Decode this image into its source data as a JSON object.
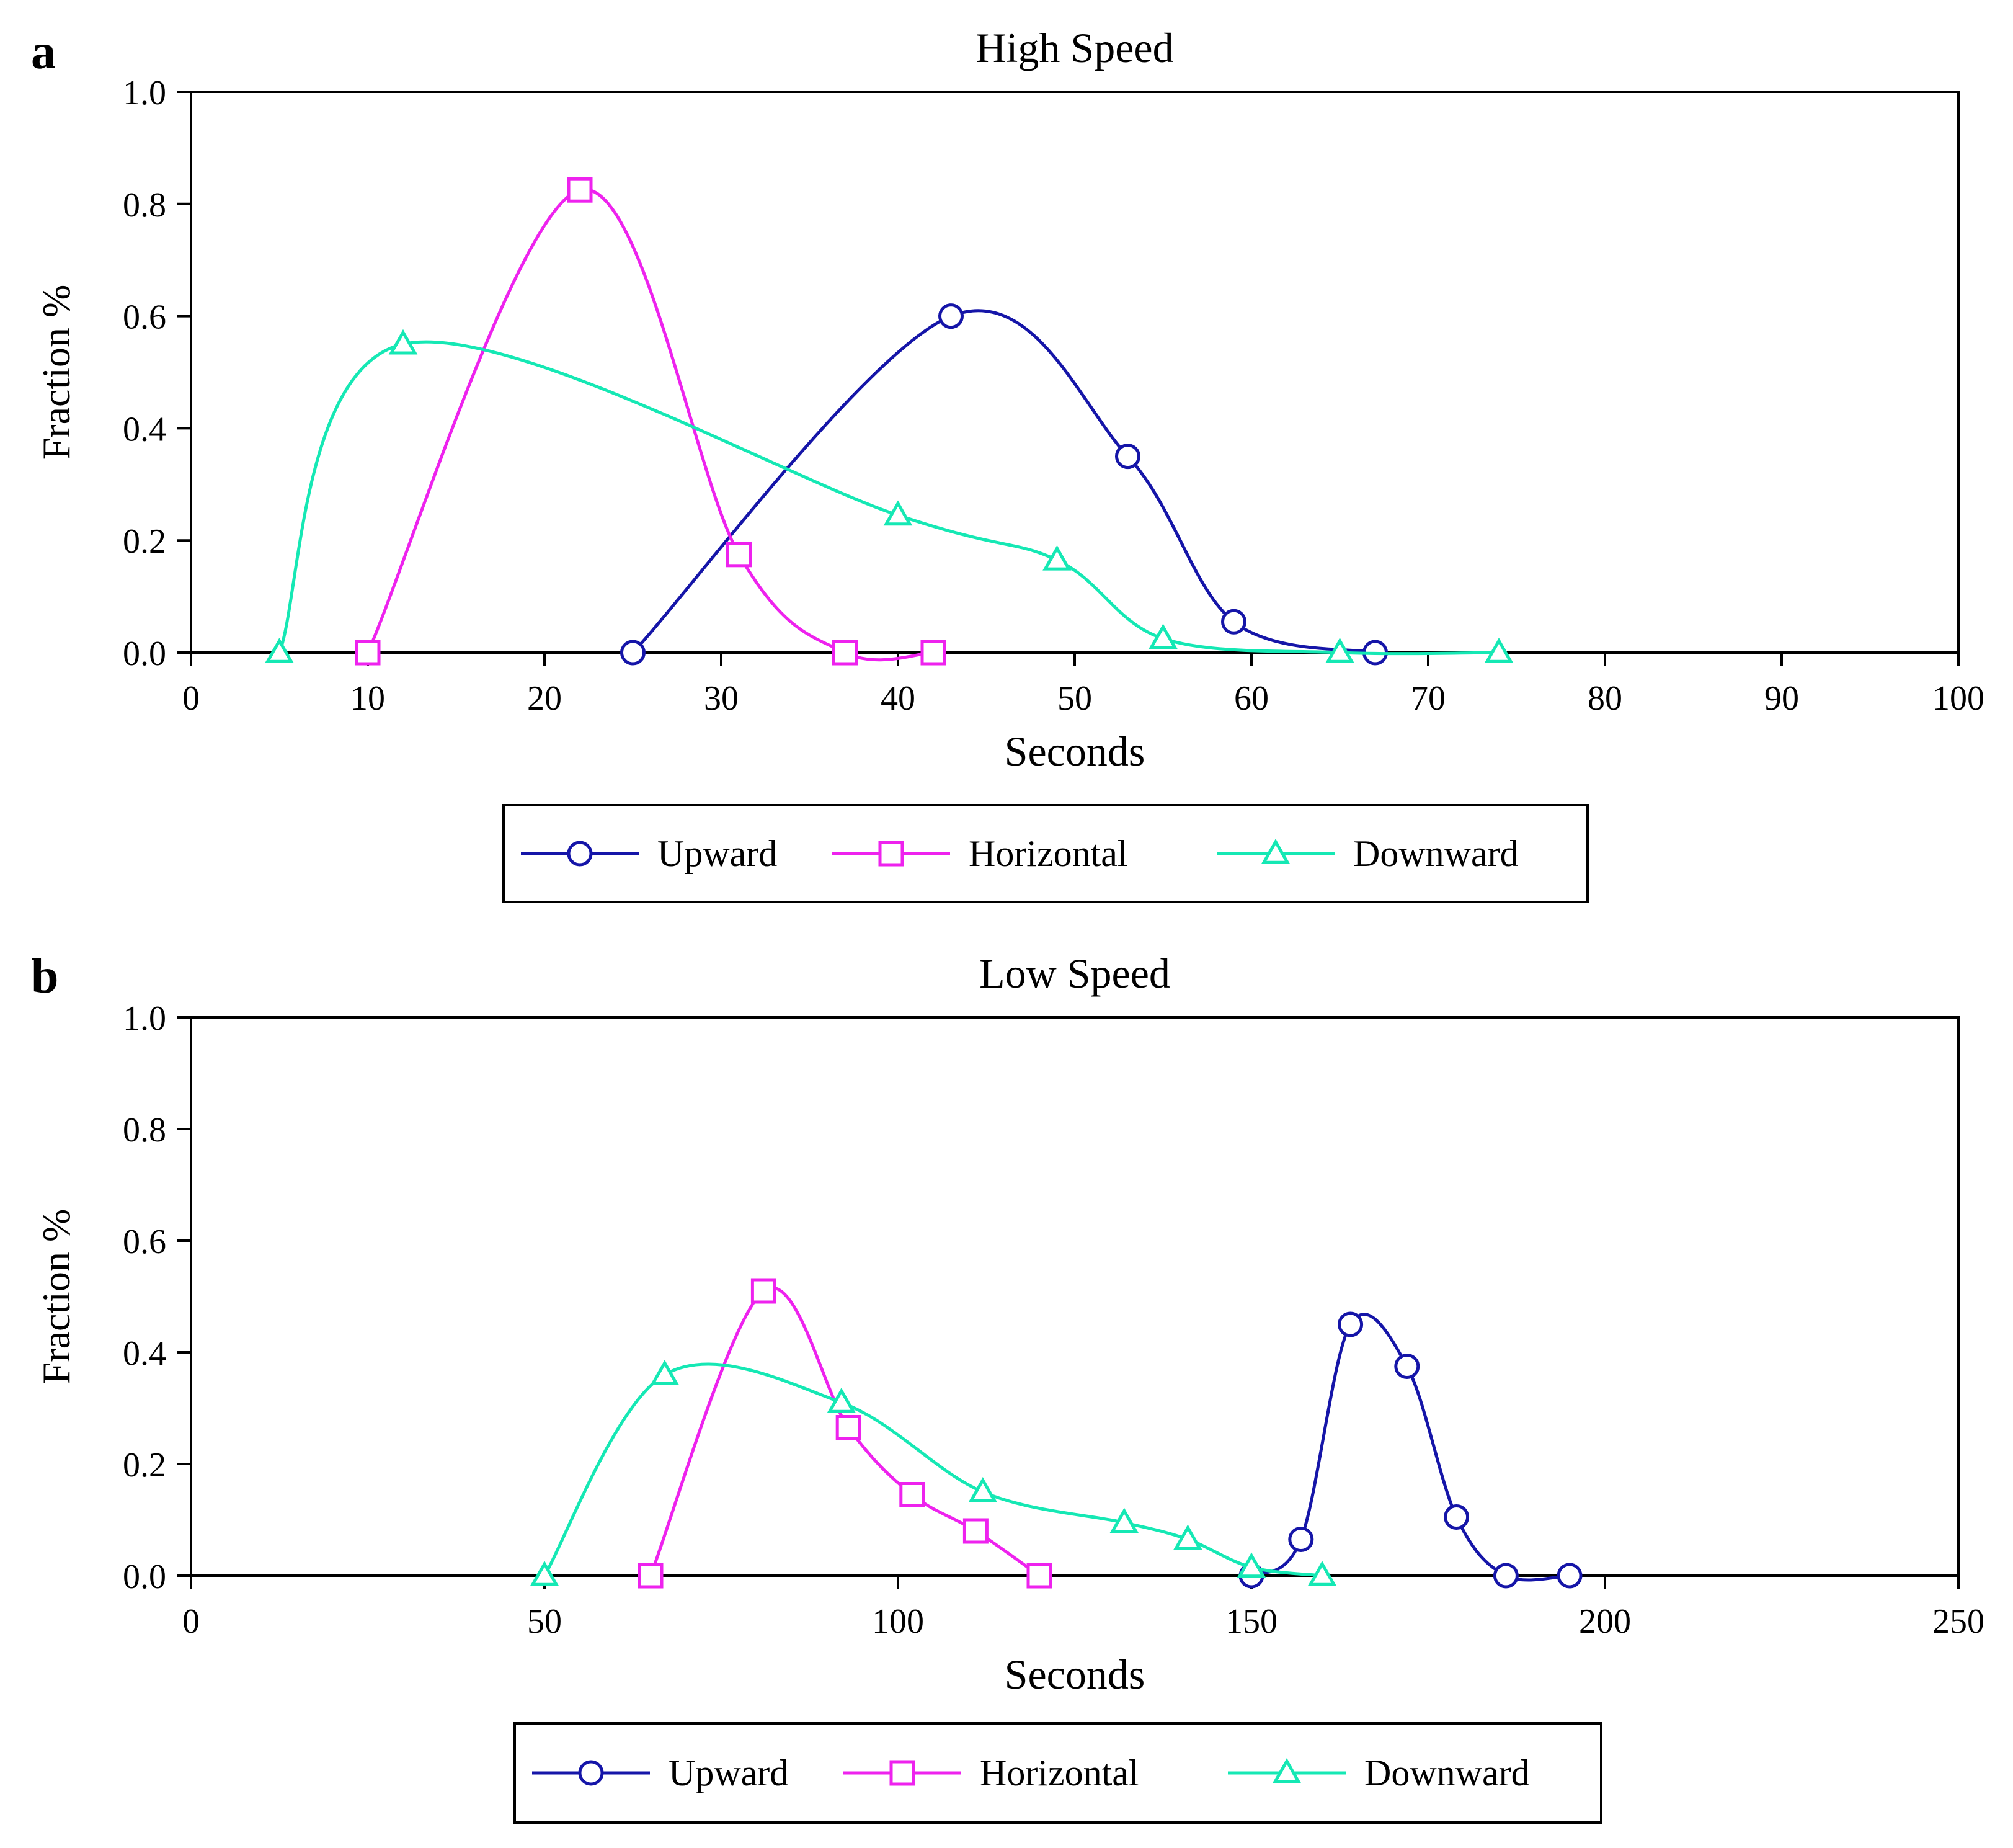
{
  "figure": {
    "colors": {
      "upward": "#1515a8",
      "horizontal": "#ee22ee",
      "downward": "#15e8b4",
      "axis": "#000000"
    }
  },
  "chart_data": [
    {
      "panel_label": "a",
      "type": "line",
      "title": "High Speed",
      "xlabel": "Seconds",
      "ylabel": "Fraction %",
      "xlim": [
        0,
        100
      ],
      "ylim": [
        0,
        1.0
      ],
      "xticks": [
        0,
        10,
        20,
        30,
        40,
        50,
        60,
        70,
        80,
        90,
        100
      ],
      "xtick_labels": [
        "0",
        "10",
        "20",
        "30",
        "40",
        "50",
        "60",
        "70",
        "80",
        "90",
        "100"
      ],
      "yticks": [
        0,
        0.2,
        0.4,
        0.6,
        0.8,
        1.0
      ],
      "ytick_labels": [
        "0.0",
        "0.2",
        "0.4",
        "0.6",
        "0.8",
        "1.0"
      ],
      "grid": false,
      "legend_position": "bottom",
      "series": [
        {
          "key": "upward",
          "name": "Upward",
          "marker": "circle",
          "x": [
            25,
            43,
            53,
            59,
            67
          ],
          "y": [
            0.0,
            0.6,
            0.35,
            0.055,
            0.0
          ]
        },
        {
          "key": "horizontal",
          "name": "Horizontal",
          "marker": "square",
          "x": [
            10,
            22,
            31,
            37,
            42
          ],
          "y": [
            0.0,
            0.825,
            0.175,
            0.0,
            0.0
          ]
        },
        {
          "key": "downward",
          "name": "Downward",
          "marker": "triangle",
          "x": [
            5,
            12,
            40,
            49,
            55,
            65,
            74
          ],
          "y": [
            0.0,
            0.55,
            0.245,
            0.165,
            0.025,
            0.0,
            0.0
          ]
        }
      ]
    },
    {
      "panel_label": "b",
      "type": "line",
      "title": "Low Speed",
      "xlabel": "Seconds",
      "ylabel": "Fraction %",
      "xlim": [
        0,
        250
      ],
      "ylim": [
        0,
        1.0
      ],
      "xticks": [
        0,
        50,
        100,
        150,
        200,
        250
      ],
      "xtick_labels": [
        "0",
        "50",
        "100",
        "150",
        "200",
        "250"
      ],
      "yticks": [
        0,
        0.2,
        0.4,
        0.6,
        0.8,
        1.0
      ],
      "ytick_labels": [
        "0.0",
        "0.2",
        "0.4",
        "0.6",
        "0.8",
        "1.0"
      ],
      "grid": false,
      "legend_position": "bottom",
      "series": [
        {
          "key": "upward",
          "name": "Upward",
          "marker": "circle",
          "x": [
            150,
            157,
            164,
            172,
            179,
            186,
            195
          ],
          "y": [
            0.0,
            0.065,
            0.45,
            0.375,
            0.105,
            0.0,
            0.0
          ]
        },
        {
          "key": "horizontal",
          "name": "Horizontal",
          "marker": "square",
          "x": [
            65,
            81,
            93,
            102,
            111,
            120
          ],
          "y": [
            0.0,
            0.51,
            0.265,
            0.145,
            0.08,
            0.0
          ]
        },
        {
          "key": "downward",
          "name": "Downward",
          "marker": "triangle",
          "x": [
            50,
            67,
            92,
            112,
            132,
            141,
            150,
            160
          ],
          "y": [
            0.0,
            0.36,
            0.31,
            0.15,
            0.095,
            0.065,
            0.015,
            0.0
          ]
        }
      ]
    }
  ]
}
